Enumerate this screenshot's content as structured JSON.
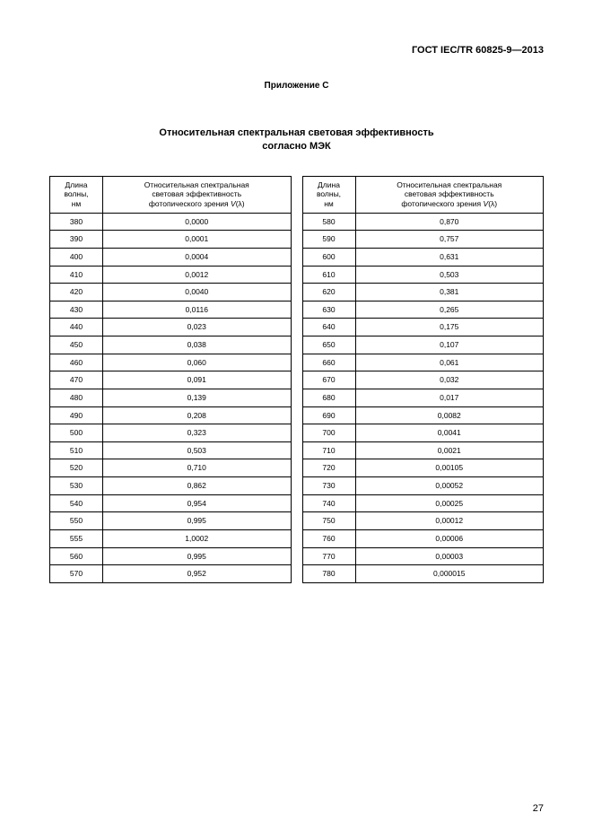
{
  "doc_id": "ГОСТ IEC/TR 60825-9—2013",
  "annex": "Приложение C",
  "title_line1": "Относительная спектральная световая эффективность",
  "title_line2": "согласно МЭК",
  "header_wave_line1": "Длина",
  "header_wave_line2": "волны,",
  "header_wave_line3": "нм",
  "header_val_line1": "Относительная спектральная",
  "header_val_line2": "световая эффективность",
  "header_val_line3_a": "фотопического зрения ",
  "header_val_line3_b": "V",
  "header_val_line3_c": "(λ)",
  "page_number": "27",
  "table_left": {
    "rows": [
      {
        "w": "380",
        "v": "0,0000"
      },
      {
        "w": "390",
        "v": "0,0001"
      },
      {
        "w": "400",
        "v": "0,0004"
      },
      {
        "w": "410",
        "v": "0,0012"
      },
      {
        "w": "420",
        "v": "0,0040"
      },
      {
        "w": "430",
        "v": "0,0116"
      },
      {
        "w": "440",
        "v": "0,023"
      },
      {
        "w": "450",
        "v": "0,038"
      },
      {
        "w": "460",
        "v": "0,060"
      },
      {
        "w": "470",
        "v": "0,091"
      },
      {
        "w": "480",
        "v": "0,139"
      },
      {
        "w": "490",
        "v": "0,208"
      },
      {
        "w": "500",
        "v": "0,323"
      },
      {
        "w": "510",
        "v": "0,503"
      },
      {
        "w": "520",
        "v": "0,710"
      },
      {
        "w": "530",
        "v": "0,862"
      },
      {
        "w": "540",
        "v": "0,954"
      },
      {
        "w": "550",
        "v": "0,995"
      },
      {
        "w": "555",
        "v": "1,0002"
      },
      {
        "w": "560",
        "v": "0,995"
      },
      {
        "w": "570",
        "v": "0,952"
      }
    ]
  },
  "table_right": {
    "rows": [
      {
        "w": "580",
        "v": "0,870"
      },
      {
        "w": "590",
        "v": "0,757"
      },
      {
        "w": "600",
        "v": "0,631"
      },
      {
        "w": "610",
        "v": "0,503"
      },
      {
        "w": "620",
        "v": "0,381"
      },
      {
        "w": "630",
        "v": "0,265"
      },
      {
        "w": "640",
        "v": "0,175"
      },
      {
        "w": "650",
        "v": "0,107"
      },
      {
        "w": "660",
        "v": "0,061"
      },
      {
        "w": "670",
        "v": "0,032"
      },
      {
        "w": "680",
        "v": "0,017"
      },
      {
        "w": "690",
        "v": "0,0082"
      },
      {
        "w": "700",
        "v": "0,0041"
      },
      {
        "w": "710",
        "v": "0,0021"
      },
      {
        "w": "720",
        "v": "0,00105"
      },
      {
        "w": "730",
        "v": "0,00052"
      },
      {
        "w": "740",
        "v": "0,00025"
      },
      {
        "w": "750",
        "v": "0,00012"
      },
      {
        "w": "760",
        "v": "0,00006"
      },
      {
        "w": "770",
        "v": "0,00003"
      },
      {
        "w": "780",
        "v": "0,000015"
      }
    ]
  }
}
